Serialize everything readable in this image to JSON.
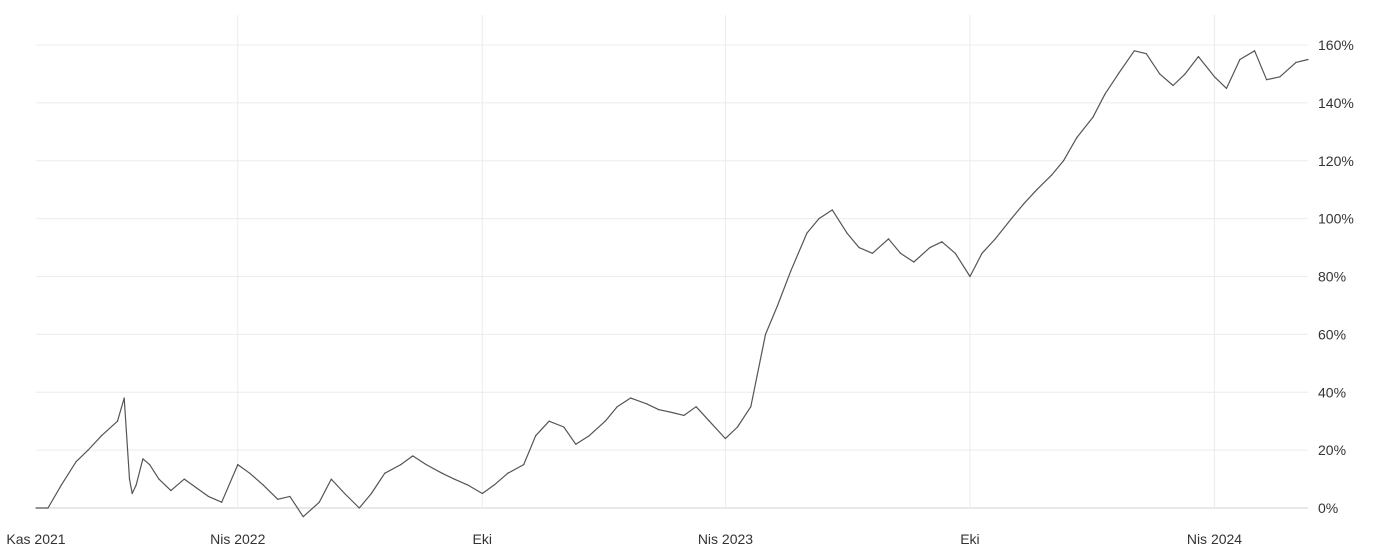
{
  "chart_data": {
    "type": "line",
    "title": "",
    "xlabel": "",
    "ylabel": "",
    "ylim": [
      0,
      160
    ],
    "xlim": [
      "2021-11-01",
      "2024-06-10"
    ],
    "grid": true,
    "legend": "none",
    "y_ticks": [
      {
        "value": 0,
        "label": "0%"
      },
      {
        "value": 20,
        "label": "20%"
      },
      {
        "value": 40,
        "label": "40%"
      },
      {
        "value": 60,
        "label": "60%"
      },
      {
        "value": 80,
        "label": "80%"
      },
      {
        "value": 100,
        "label": "100%"
      },
      {
        "value": 120,
        "label": "120%"
      },
      {
        "value": 140,
        "label": "140%"
      },
      {
        "value": 160,
        "label": "160%"
      }
    ],
    "x_ticks": [
      {
        "date": "2021-11-01",
        "label": "Kas 2021"
      },
      {
        "date": "2022-04-01",
        "label": "Nis 2022"
      },
      {
        "date": "2022-10-01",
        "label": "Eki"
      },
      {
        "date": "2023-04-01",
        "label": "Nis 2023"
      },
      {
        "date": "2023-10-01",
        "label": "Eki"
      },
      {
        "date": "2024-04-01",
        "label": "Nis 2024"
      }
    ],
    "series": [
      {
        "color": "#555555",
        "x": [
          "2021-11-01",
          "2021-11-10",
          "2021-11-20",
          "2021-12-01",
          "2021-12-10",
          "2021-12-20",
          "2022-01-01",
          "2022-01-06",
          "2022-01-10",
          "2022-01-12",
          "2022-01-15",
          "2022-01-20",
          "2022-01-25",
          "2022-02-01",
          "2022-02-10",
          "2022-02-20",
          "2022-03-01",
          "2022-03-10",
          "2022-03-20",
          "2022-04-01",
          "2022-04-10",
          "2022-04-20",
          "2022-05-01",
          "2022-05-10",
          "2022-05-20",
          "2022-06-01",
          "2022-06-10",
          "2022-06-20",
          "2022-07-01",
          "2022-07-10",
          "2022-07-20",
          "2022-08-01",
          "2022-08-10",
          "2022-08-20",
          "2022-09-01",
          "2022-09-10",
          "2022-09-20",
          "2022-10-01",
          "2022-10-10",
          "2022-10-20",
          "2022-11-01",
          "2022-11-10",
          "2022-11-20",
          "2022-12-01",
          "2022-12-10",
          "2022-12-20",
          "2023-01-01",
          "2023-01-10",
          "2023-01-20",
          "2023-02-01",
          "2023-02-10",
          "2023-02-20",
          "2023-03-01",
          "2023-03-10",
          "2023-03-20",
          "2023-04-01",
          "2023-04-10",
          "2023-04-20",
          "2023-05-01",
          "2023-05-10",
          "2023-05-20",
          "2023-06-01",
          "2023-06-10",
          "2023-06-20",
          "2023-07-01",
          "2023-07-10",
          "2023-07-20",
          "2023-08-01",
          "2023-08-10",
          "2023-08-20",
          "2023-09-01",
          "2023-09-10",
          "2023-09-20",
          "2023-10-01",
          "2023-10-10",
          "2023-10-20",
          "2023-11-01",
          "2023-11-10",
          "2023-11-20",
          "2023-12-01",
          "2023-12-10",
          "2023-12-20",
          "2024-01-01",
          "2024-01-10",
          "2024-01-20",
          "2024-02-01",
          "2024-02-10",
          "2024-02-20",
          "2024-03-01",
          "2024-03-10",
          "2024-03-20",
          "2024-04-01",
          "2024-04-10",
          "2024-04-20",
          "2024-05-01",
          "2024-05-10",
          "2024-05-20",
          "2024-06-01",
          "2024-06-10"
        ],
        "values": [
          0,
          0,
          8,
          16,
          20,
          25,
          30,
          38,
          10,
          5,
          8,
          17,
          15,
          10,
          6,
          10,
          7,
          4,
          2,
          15,
          12,
          8,
          3,
          4,
          -3,
          2,
          10,
          5,
          0,
          5,
          12,
          15,
          18,
          15,
          12,
          10,
          8,
          5,
          8,
          12,
          15,
          25,
          30,
          28,
          22,
          25,
          30,
          35,
          38,
          36,
          34,
          33,
          32,
          35,
          30,
          24,
          28,
          35,
          60,
          70,
          82,
          95,
          100,
          103,
          95,
          90,
          88,
          93,
          88,
          85,
          90,
          92,
          88,
          80,
          88,
          93,
          100,
          105,
          110,
          115,
          120,
          128,
          135,
          143,
          150,
          158,
          157,
          150,
          146,
          150,
          156,
          149,
          145,
          155,
          158,
          148,
          149,
          154,
          155
        ]
      }
    ]
  }
}
